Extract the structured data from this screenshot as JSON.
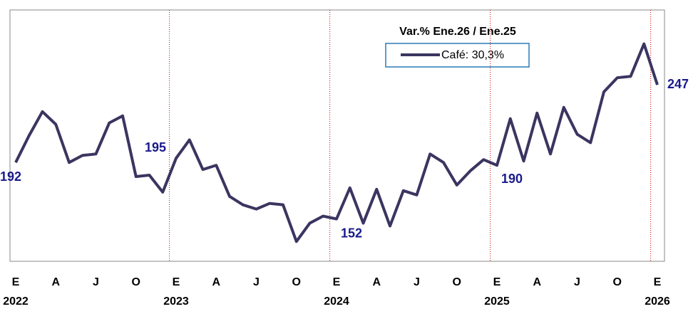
{
  "chart_data": {
    "type": "line",
    "legend_title": "Var.% Ene.26  / Ene.25",
    "categories": [
      "E",
      null,
      null,
      "A",
      null,
      null,
      "J",
      null,
      null,
      "O",
      null,
      null,
      "E",
      null,
      null,
      "A",
      null,
      null,
      "J",
      null,
      null,
      "O",
      null,
      null,
      "E",
      null,
      null,
      "A",
      null,
      null,
      "J",
      null,
      null,
      "O",
      null,
      null,
      "E",
      null,
      null,
      "A",
      null,
      null,
      "J",
      null,
      null,
      "O",
      null,
      null,
      "E"
    ],
    "years": [
      "2022",
      null,
      null,
      null,
      null,
      null,
      null,
      null,
      null,
      null,
      null,
      null,
      "2023",
      null,
      null,
      null,
      null,
      null,
      null,
      null,
      null,
      null,
      null,
      null,
      "2024",
      null,
      null,
      null,
      null,
      null,
      null,
      null,
      null,
      null,
      null,
      null,
      "2025",
      null,
      null,
      null,
      null,
      null,
      null,
      null,
      null,
      null,
      null,
      null,
      "2026"
    ],
    "series": [
      {
        "name": "Café: 30,3%",
        "color": "#3a3560",
        "values": [
          192,
          211,
          228,
          219,
          192,
          197,
          198,
          220,
          225,
          182,
          183,
          171,
          195,
          208,
          187,
          190,
          168,
          162,
          159,
          163,
          162,
          136,
          149,
          154,
          152,
          174,
          149,
          173,
          147,
          172,
          169,
          198,
          192,
          176,
          186,
          194,
          190,
          223,
          193,
          227,
          198,
          231,
          212,
          206,
          242,
          252,
          253,
          276,
          247
        ],
        "value_labels": [
          "192",
          null,
          null,
          null,
          null,
          null,
          null,
          null,
          null,
          null,
          null,
          null,
          "195",
          null,
          null,
          null,
          null,
          null,
          null,
          null,
          null,
          null,
          null,
          null,
          "152",
          null,
          null,
          null,
          null,
          null,
          null,
          null,
          null,
          null,
          null,
          null,
          "190",
          null,
          null,
          null,
          null,
          null,
          null,
          null,
          null,
          null,
          null,
          null,
          "247"
        ]
      }
    ],
    "ylim": [
      122,
      300
    ]
  }
}
